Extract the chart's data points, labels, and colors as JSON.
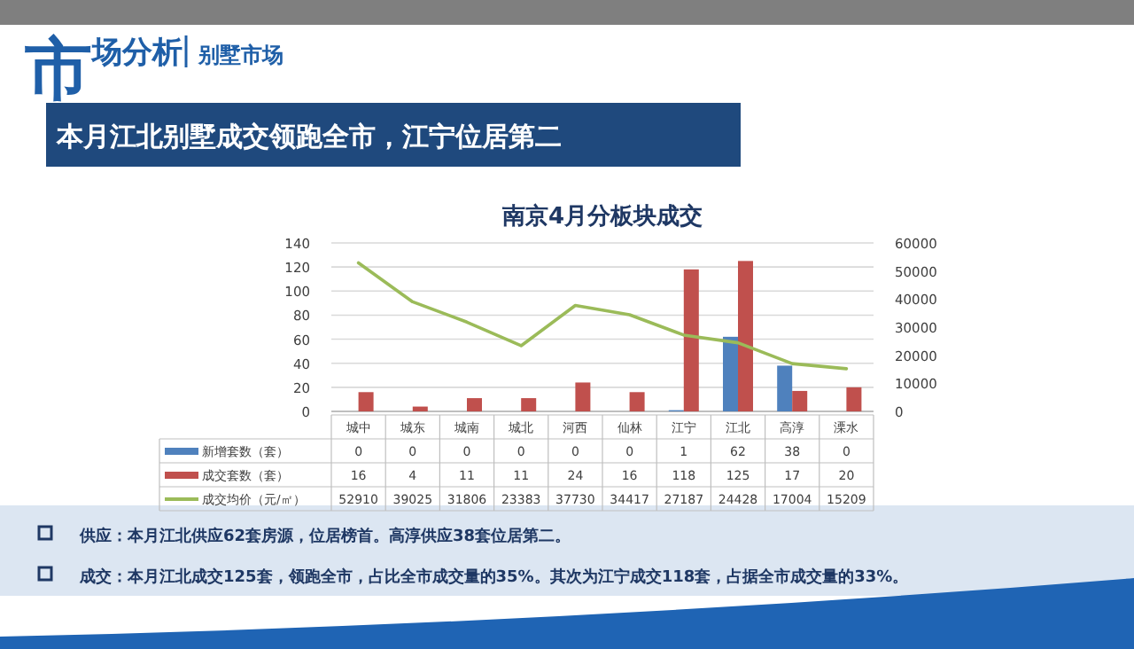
{
  "chart_data": {
    "type": "bar",
    "title": "南京4月分板块成交",
    "subtitle": "本月江北别墅成交领跑全市，江宁位居第二",
    "annotations": [
      "市场分析",
      "别墅市场",
      "供应：本月江北供应62套房源，位居榜首。高淳供应38套位居第二。",
      "成交：本月江北成交125套，领跑全市，占比全市成交量的35%。其次为江宁成交118套，占据全市成交量的33%。"
    ],
    "categories": [
      "城中",
      "城东",
      "城南",
      "城北",
      "河西",
      "仙林",
      "江宁",
      "江北",
      "高淳",
      "溧水"
    ],
    "series": [
      {
        "name": "新增套数（套）",
        "color": "#4f81bd",
        "values": [
          0,
          0,
          0,
          0,
          0,
          0,
          1,
          62,
          38,
          0
        ]
      },
      {
        "name": "成交套数（套）",
        "color": "#c0504d",
        "values": [
          16,
          4,
          11,
          11,
          24,
          16,
          118,
          125,
          17,
          20
        ]
      },
      {
        "name": "成交均价（元/㎡）",
        "type": "line",
        "axis": "y2",
        "color": "#9bbb59",
        "values": [
          52910,
          39025,
          31806,
          23383,
          37730,
          34417,
          27187,
          24428,
          17004,
          15209
        ]
      }
    ],
    "ylim": [
      0,
      140
    ],
    "yticks": [
      0,
      20,
      40,
      60,
      80,
      100,
      120,
      140
    ],
    "y2lim": [
      0,
      60000
    ],
    "y2ticks": [
      0,
      10000,
      20000,
      30000,
      40000,
      50000,
      60000
    ],
    "grid": "y",
    "legend": "bottom",
    "data_labels": true,
    "marker": "none",
    "line_style": "solid"
  }
}
